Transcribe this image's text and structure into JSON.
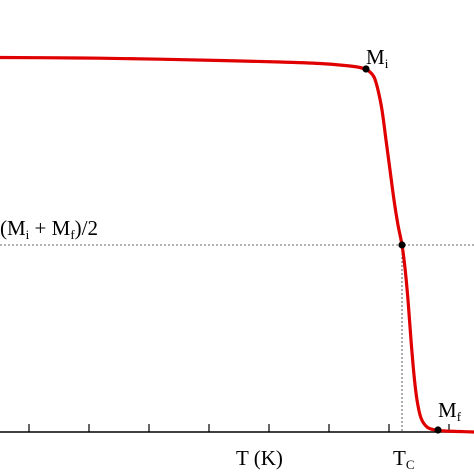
{
  "chart_data": {
    "type": "line",
    "xlabel": "T (K)",
    "series": [
      {
        "color": "#e00000",
        "points": [
          [
            -2,
            57.5
          ],
          [
            40,
            57.7
          ],
          [
            100,
            58.2
          ],
          [
            160,
            59.2
          ],
          [
            220,
            60.5
          ],
          [
            280,
            62.0
          ],
          [
            320,
            63.5
          ],
          [
            345,
            65.5
          ],
          [
            360,
            67.5
          ],
          [
            368,
            70.5
          ],
          [
            374,
            77
          ],
          [
            378,
            90
          ],
          [
            382,
            110
          ],
          [
            386,
            140
          ],
          [
            390,
            170
          ],
          [
            394,
            200
          ],
          [
            398,
            225
          ],
          [
            402,
            245
          ],
          [
            405,
            268
          ],
          [
            408,
            300
          ],
          [
            411,
            340
          ],
          [
            414,
            375
          ],
          [
            417,
            400
          ],
          [
            421,
            418
          ],
          [
            427,
            427
          ],
          [
            435,
            430
          ],
          [
            445,
            431
          ],
          [
            460,
            431.5
          ],
          [
            474,
            432
          ]
        ]
      }
    ],
    "reference_lines": {
      "horizontal_y": 245,
      "vertical_x": 402
    },
    "annotations": [
      {
        "id": "mi",
        "point": [
          366,
          69
        ],
        "label": "M",
        "sub": "i"
      },
      {
        "id": "mid",
        "point": [
          402,
          245
        ],
        "label_parts": [
          "(M",
          "i",
          " + M",
          "f",
          ")/2"
        ]
      },
      {
        "id": "mf",
        "point": [
          438,
          430
        ],
        "label": "M",
        "sub": "f"
      },
      {
        "id": "tc",
        "label": "T",
        "sub": "C"
      }
    ],
    "x_axis": {
      "ticks": [
        29,
        89,
        149,
        209,
        269,
        329,
        389,
        449
      ]
    },
    "grid": false,
    "legend": "none"
  }
}
